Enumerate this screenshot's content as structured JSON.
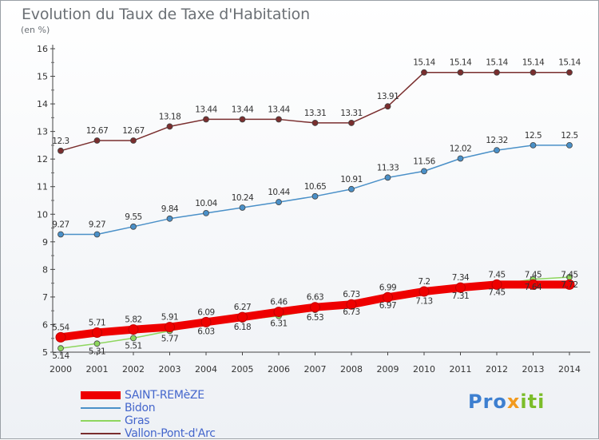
{
  "title": "Evolution du Taux de Taxe d'Habitation",
  "subtitle": "(en %)",
  "logo": {
    "part1": "Pro",
    "part2": "x",
    "part3": "iti"
  },
  "chart_data": {
    "type": "line",
    "x": [
      "2000",
      "2001",
      "2002",
      "2003",
      "2004",
      "2005",
      "2006",
      "2007",
      "2008",
      "2009",
      "2010",
      "2011",
      "2012",
      "2013",
      "2014"
    ],
    "ylim": [
      5,
      16
    ],
    "yticks": [
      "5",
      "6",
      "7",
      "8",
      "9",
      "10",
      "11",
      "12",
      "13",
      "14",
      "15",
      "16"
    ],
    "grid": false,
    "legend_position": "bottom-left",
    "series": [
      {
        "name": "SAINT-REMèZE",
        "color": "#ee0000",
        "width": 10,
        "values": [
          5.54,
          5.71,
          5.82,
          5.91,
          6.09,
          6.27,
          6.46,
          6.63,
          6.73,
          6.99,
          7.2,
          7.34,
          7.45,
          7.45,
          7.45
        ],
        "labels": [
          "5.54",
          "5.71",
          "5.82",
          "5.91",
          "6.09",
          "6.27",
          "6.46",
          "6.63",
          "6.73",
          "6.99",
          "7.2",
          "7.34",
          "7.45",
          "7.45",
          "7.45"
        ]
      },
      {
        "name": "Bidon",
        "color": "#4a90c8",
        "width": 1.5,
        "values": [
          9.27,
          9.27,
          9.55,
          9.84,
          10.04,
          10.24,
          10.44,
          10.65,
          10.91,
          11.33,
          11.56,
          12.02,
          12.32,
          12.5,
          12.5
        ],
        "labels": [
          "9.27",
          "9.27",
          "9.55",
          "9.84",
          "10.04",
          "10.24",
          "10.44",
          "10.65",
          "10.91",
          "11.33",
          "11.56",
          "12.02",
          "12.32",
          "12.5",
          "12.5"
        ]
      },
      {
        "name": "Gras",
        "color": "#8ed65e",
        "width": 1.5,
        "values": [
          5.14,
          5.31,
          5.51,
          5.77,
          6.03,
          6.18,
          6.31,
          6.53,
          6.73,
          6.97,
          7.13,
          7.31,
          7.45,
          7.64,
          7.72
        ],
        "labels": [
          "5.14",
          "5.31",
          "5.51",
          "5.77",
          "6.03",
          "6.18",
          "6.31",
          "6.53",
          "6.73",
          "6.97",
          "7.13",
          "7.31",
          "7.45",
          "7.64",
          "7.72"
        ]
      },
      {
        "name": "Vallon-Pont-d'Arc",
        "color": "#7a2e2e",
        "width": 1.5,
        "values": [
          12.3,
          12.67,
          12.67,
          13.18,
          13.44,
          13.44,
          13.44,
          13.31,
          13.31,
          13.91,
          15.14,
          15.14,
          15.14,
          15.14,
          15.14
        ],
        "labels": [
          "12.3",
          "12.67",
          "12.67",
          "13.18",
          "13.44",
          "13.44",
          "13.44",
          "13.31",
          "13.31",
          "13.91",
          "15.14",
          "15.14",
          "15.14",
          "15.14",
          "15.14"
        ]
      }
    ]
  }
}
